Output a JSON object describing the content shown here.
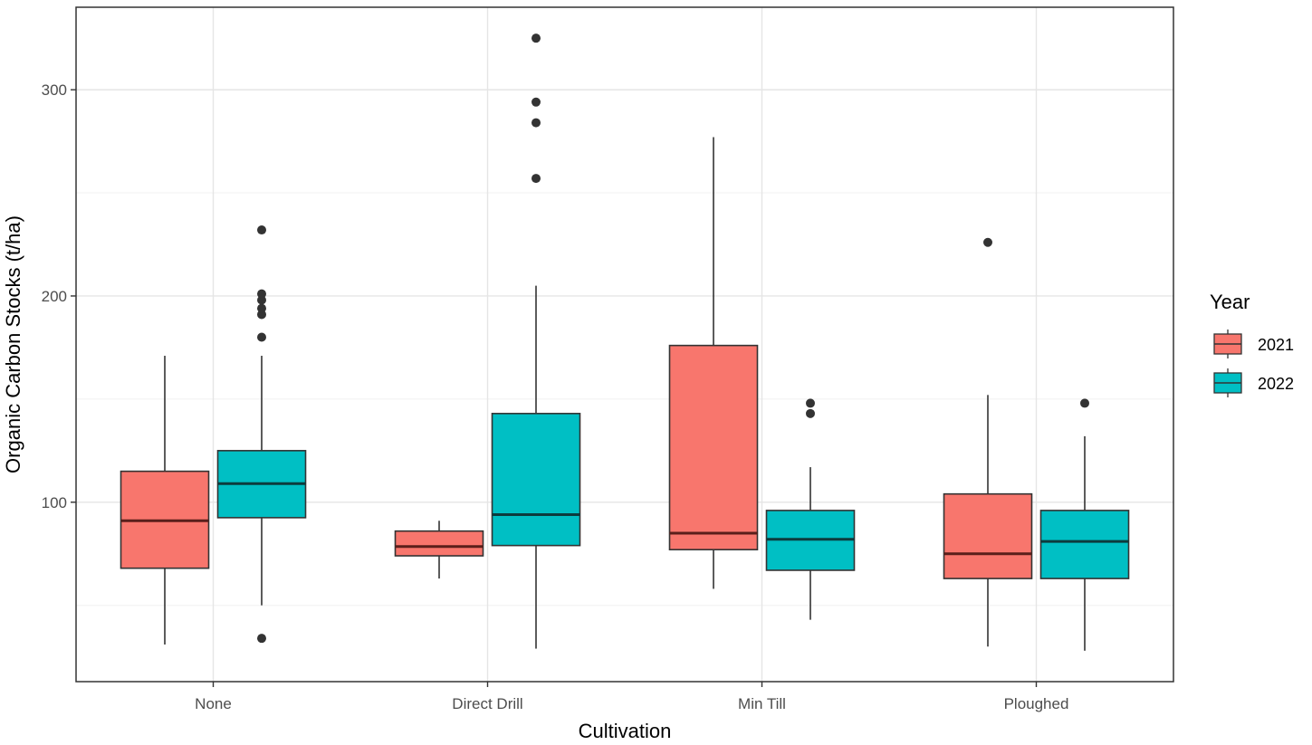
{
  "chart_data": {
    "type": "boxplot",
    "title": "",
    "xlabel": "Cultivation",
    "ylabel": "Organic Carbon Stocks (t/ha)",
    "categories": [
      "None",
      "Direct Drill",
      "Min Till",
      "Ploughed"
    ],
    "ylim": [
      13,
      340
    ],
    "y_major_ticks": [
      100,
      200,
      300
    ],
    "y_minor_gridlines": [
      50,
      150,
      250
    ],
    "grid": true,
    "legend": {
      "title": "Year",
      "position": "right",
      "entries": [
        {
          "label": "2021",
          "color": "#F8766D"
        },
        {
          "label": "2022",
          "color": "#00BFC4"
        }
      ]
    },
    "series": [
      {
        "name": "2021",
        "color": "#F8766D",
        "boxes": [
          {
            "category": "None",
            "lower": 31,
            "q1": 68,
            "median": 91,
            "q3": 115,
            "upper": 171,
            "outliers": []
          },
          {
            "category": "Direct Drill",
            "lower": 63,
            "q1": 74,
            "median": 78.5,
            "q3": 86,
            "upper": 91,
            "outliers": []
          },
          {
            "category": "Min Till",
            "lower": 58,
            "q1": 77,
            "median": 85,
            "q3": 176,
            "upper": 277,
            "outliers": []
          },
          {
            "category": "Ploughed",
            "lower": 30,
            "q1": 63,
            "median": 75,
            "q3": 104,
            "upper": 152,
            "outliers": [
              226
            ]
          }
        ]
      },
      {
        "name": "2022",
        "color": "#00BFC4",
        "boxes": [
          {
            "category": "None",
            "lower": 50,
            "q1": 92.5,
            "median": 109,
            "q3": 125,
            "upper": 171,
            "outliers": [
              34,
              180,
              191,
              194,
              198,
              201,
              232
            ]
          },
          {
            "category": "Direct Drill",
            "lower": 29,
            "q1": 79,
            "median": 94,
            "q3": 143,
            "upper": 205,
            "outliers": [
              257,
              284,
              294,
              325
            ]
          },
          {
            "category": "Min Till",
            "lower": 43,
            "q1": 67,
            "median": 82,
            "q3": 96,
            "upper": 117,
            "outliers": [
              143,
              148
            ]
          },
          {
            "category": "Ploughed",
            "lower": 28,
            "q1": 63,
            "median": 81,
            "q3": 96,
            "upper": 132,
            "outliers": [
              148
            ]
          }
        ]
      }
    ]
  }
}
